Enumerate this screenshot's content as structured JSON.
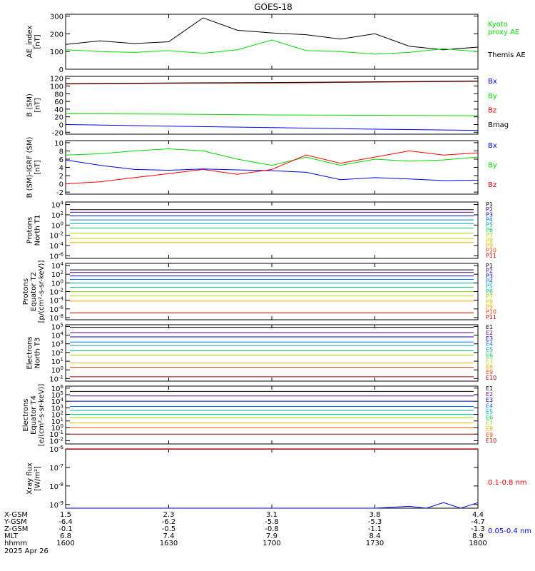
{
  "title": "GOES-18",
  "date_label": "2025 Apr 26",
  "footer": {
    "row_labels": [
      "X-GSM",
      "Y-GSM",
      "Z-GSM",
      "MLT",
      "hhmm"
    ],
    "columns": [
      {
        "values": [
          "1.5",
          "-6.4",
          "-0.1",
          "6.8",
          "1600"
        ]
      },
      {
        "values": [
          "2.3",
          "-6.2",
          "-0.5",
          "7.4",
          "1630"
        ]
      },
      {
        "values": [
          "3.1",
          "-5.8",
          "-0.8",
          "7.9",
          "1700"
        ]
      },
      {
        "values": [
          "3.8",
          "-5.3",
          "-1.1",
          "8.4",
          "1730"
        ]
      },
      {
        "values": [
          "4.4",
          "-4.7",
          "-1.3",
          "8.9",
          "1800"
        ]
      }
    ]
  },
  "chart_data": [
    {
      "type": "line",
      "ylabel": [
        "AE_index",
        "[nT]"
      ],
      "yticks": [
        "300",
        "200",
        "100",
        "0"
      ],
      "ylim": [
        0,
        310
      ],
      "x": [
        1600,
        1610,
        1620,
        1630,
        1640,
        1650,
        1700,
        1710,
        1720,
        1730,
        1740,
        1750,
        1800
      ],
      "series": [
        {
          "name": "Themis AE",
          "color": "#000000",
          "values": [
            140,
            160,
            145,
            155,
            290,
            220,
            205,
            195,
            170,
            200,
            130,
            110,
            125
          ]
        },
        {
          "name": "Kyoto proxy AE",
          "color": "#00dd00",
          "values": [
            110,
            100,
            95,
            105,
            90,
            110,
            165,
            105,
            100,
            85,
            95,
            115,
            100
          ]
        }
      ],
      "legend": [
        {
          "text": "Kyoto",
          "color": "#00dd00"
        },
        {
          "text": "proxy AE",
          "color": "#00dd00"
        },
        {
          "text": "Themis AE",
          "color": "#000000"
        }
      ]
    },
    {
      "type": "line",
      "ylabel": [
        "B (SM)",
        "[nT]"
      ],
      "yticks": [
        "120",
        "100",
        "80",
        "60",
        "40",
        "20",
        "0",
        "-20"
      ],
      "ylim": [
        -25,
        125
      ],
      "x": [
        1600,
        1630,
        1700,
        1730,
        1800
      ],
      "series": [
        {
          "name": "Bz",
          "color": "#ff0000",
          "values": [
            105,
            107,
            108,
            110,
            112
          ]
        },
        {
          "name": "Bmag",
          "color": "#000000",
          "values": [
            106,
            108,
            109,
            111,
            113
          ]
        },
        {
          "name": "By",
          "color": "#00dd00",
          "values": [
            28,
            27,
            25,
            24,
            23
          ]
        },
        {
          "name": "Bx",
          "color": "#0000ff",
          "values": [
            0,
            -4,
            -8,
            -12,
            -15
          ]
        }
      ],
      "legend": [
        {
          "text": "Bx",
          "color": "#0000ff"
        },
        {
          "text": "By",
          "color": "#00dd00"
        },
        {
          "text": "Bz",
          "color": "#ff0000"
        },
        {
          "text": "Bmag",
          "color": "#000000"
        }
      ]
    },
    {
      "type": "line",
      "ylabel": [
        "B (SM)-IGRF (SM)",
        "[nT]"
      ],
      "yticks": [
        "10",
        "8",
        "6",
        "4",
        "2",
        "0",
        "-2"
      ],
      "ylim": [
        -2.5,
        10.5
      ],
      "x": [
        1600,
        1610,
        1620,
        1630,
        1640,
        1650,
        1700,
        1710,
        1720,
        1730,
        1740,
        1750,
        1800
      ],
      "series": [
        {
          "name": "By",
          "color": "#00dd00",
          "values": [
            7,
            7.3,
            8,
            8.5,
            8,
            6,
            4.5,
            6.5,
            4.5,
            6,
            5.5,
            5.8,
            6.5
          ]
        },
        {
          "name": "Bx",
          "color": "#0000ff",
          "values": [
            5.8,
            4.5,
            3.5,
            3.3,
            3.6,
            3.4,
            3.2,
            2.8,
            1,
            1.5,
            1.2,
            0.8,
            0.9
          ]
        },
        {
          "name": "Bz",
          "color": "#ff0000",
          "values": [
            0,
            0.5,
            1.5,
            2.5,
            3.5,
            2.3,
            3.5,
            7,
            5,
            6.5,
            8,
            7,
            7.5
          ]
        }
      ],
      "legend": [
        {
          "text": "Bx",
          "color": "#0000ff"
        },
        {
          "text": "By",
          "color": "#00dd00"
        },
        {
          "text": "Bz",
          "color": "#ff0000"
        }
      ]
    },
    {
      "type": "line",
      "scale": "log",
      "ylabel": [
        "Protons",
        "North T1"
      ],
      "yticks": [
        "10^4",
        "10^2",
        "10^0",
        "10^-2",
        "10^-4",
        "10^-6"
      ],
      "ylim": [
        -6.5,
        4.5
      ],
      "channels": [
        {
          "name": "P1",
          "color": "#000000",
          "log_value": 3.0
        },
        {
          "name": "P2",
          "color": "#550088",
          "log_value": 2.5
        },
        {
          "name": "P3",
          "color": "#0000cc",
          "log_value": 1.8
        },
        {
          "name": "P4",
          "color": "#0077ff",
          "log_value": 1.0
        },
        {
          "name": "P5",
          "color": "#00aaaa",
          "log_value": 0.3
        },
        {
          "name": "P6",
          "color": "#00cc66",
          "log_value": -0.6
        },
        {
          "name": "P7",
          "color": "#99dd00",
          "log_value": -1.6
        },
        {
          "name": "P8",
          "color": "#cccc00",
          "log_value": -2.6
        },
        {
          "name": "P9",
          "color": "#ffaa00",
          "log_value": -3.4
        },
        {
          "name": "P10",
          "color": "#ff4400",
          "log_value": null
        },
        {
          "name": "P11",
          "color": "#cc0000",
          "log_value": null
        }
      ]
    },
    {
      "type": "line",
      "scale": "log",
      "ylabel": [
        "Protons",
        "Equator T2",
        "[p/(cm²-s-sr-keV)]"
      ],
      "yticks": [
        "10^4",
        "10^2",
        "10^0",
        "10^-2",
        "10^-4",
        "10^-6",
        "10^-8"
      ],
      "ylim": [
        -8.5,
        4.5
      ],
      "channels": [
        {
          "name": "P1",
          "color": "#000000",
          "log_value": 3.0
        },
        {
          "name": "P2",
          "color": "#550088",
          "log_value": 2.4
        },
        {
          "name": "P3",
          "color": "#0000cc",
          "log_value": 1.6
        },
        {
          "name": "P4",
          "color": "#0077ff",
          "log_value": 0.8
        },
        {
          "name": "P5",
          "color": "#00aaaa",
          "log_value": 0.0
        },
        {
          "name": "P6",
          "color": "#00cc66",
          "log_value": -1.0
        },
        {
          "name": "P7",
          "color": "#99dd00",
          "log_value": -2.0
        },
        {
          "name": "P8",
          "color": "#cccc00",
          "log_value": -3.0
        },
        {
          "name": "P9",
          "color": "#ffaa00",
          "log_value": -4.2
        },
        {
          "name": "P10",
          "color": "#ff4400",
          "log_value": null
        },
        {
          "name": "P11",
          "color": "#cc0000",
          "log_value": -6.9
        }
      ]
    },
    {
      "type": "line",
      "scale": "log",
      "ylabel": [
        "Electrons",
        "North T3"
      ],
      "yticks": [
        "10^5",
        "10^4",
        "10^3",
        "10^2",
        "10^1",
        "10^0",
        "10^-1"
      ],
      "ylim": [
        -1.3,
        5.2
      ],
      "channels": [
        {
          "name": "E1",
          "color": "#000000",
          "log_value": 4.9
        },
        {
          "name": "E2",
          "color": "#550088",
          "log_value": 4.3
        },
        {
          "name": "E3",
          "color": "#0000cc",
          "log_value": 3.8
        },
        {
          "name": "E4",
          "color": "#0077ff",
          "log_value": 3.2
        },
        {
          "name": "E5",
          "color": "#00aaaa",
          "log_value": 2.8
        },
        {
          "name": "E6",
          "color": "#00cc66",
          "log_value": 2.2
        },
        {
          "name": "E7",
          "color": "#99dd00",
          "log_value": 1.7
        },
        {
          "name": "E8",
          "color": "#ffaa00",
          "log_value": 0.8
        },
        {
          "name": "E9",
          "color": "#ff4400",
          "log_value": 0.3
        },
        {
          "name": "E10",
          "color": "#aa0000",
          "log_value": -0.8
        }
      ]
    },
    {
      "type": "line",
      "scale": "log",
      "ylabel": [
        "Electrons",
        "Equator T4",
        "[e/(cm²-s-sr-keV)]"
      ],
      "yticks": [
        "10^6",
        "10^5",
        "10^4",
        "10^3",
        "10^2",
        "10^1",
        "10^0",
        "10^-1",
        "10^-2"
      ],
      "ylim": [
        -2.5,
        6.3
      ],
      "channels": [
        {
          "name": "E1",
          "color": "#000000",
          "log_value": 5.5
        },
        {
          "name": "E2",
          "color": "#550088",
          "log_value": 4.8
        },
        {
          "name": "E3",
          "color": "#0000cc",
          "log_value": 4.0
        },
        {
          "name": "E4",
          "color": "#0077ff",
          "log_value": 3.2
        },
        {
          "name": "E5",
          "color": "#00aaaa",
          "log_value": 2.6
        },
        {
          "name": "E6",
          "color": "#00cc66",
          "log_value": 2.0
        },
        {
          "name": "E7",
          "color": "#99dd00",
          "log_value": 1.5
        },
        {
          "name": "E8",
          "color": "#ffaa00",
          "log_value": 0.7
        },
        {
          "name": "E9",
          "color": "#ff4400",
          "log_value": 0.0
        },
        {
          "name": "E10",
          "color": "#aa0000",
          "log_value": -1.0
        }
      ]
    },
    {
      "type": "line",
      "scale": "log",
      "ylabel": [
        "Xray flux",
        "[W/m²]"
      ],
      "yticks": [
        "10^-6",
        "10^-7",
        "10^-8",
        "10^-9"
      ],
      "ylim": [
        -9.2,
        -6.0
      ],
      "x": [
        1600,
        1650,
        1700,
        1710,
        1720,
        1730,
        1740,
        1745,
        1750,
        1755,
        1800
      ],
      "series": [
        {
          "name": "0.1-0.8 nm",
          "color": "#ff0000",
          "values": [
            -6.02,
            -6.02,
            -6.02,
            -6.02,
            -6.02,
            -6.02,
            -6.02,
            -6.02,
            -6.02,
            -6.02,
            -6.02
          ]
        },
        {
          "name": "0.05-0.4 nm",
          "color": "#0000ff",
          "values": [
            -9.2,
            -9.2,
            -9.2,
            -9.2,
            -9.2,
            -9.2,
            -9.1,
            -9.2,
            -8.9,
            -9.2,
            -8.9
          ]
        }
      ],
      "legend": [
        {
          "text": "0.1-0.8 nm",
          "color": "#ff0000"
        },
        {
          "text": "0.05-0.4 nm",
          "color": "#0000ff"
        }
      ]
    }
  ]
}
